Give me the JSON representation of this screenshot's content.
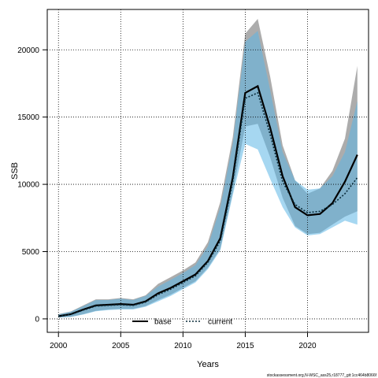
{
  "chart_data": {
    "type": "line",
    "xlabel": "Years",
    "ylabel": "SSB",
    "xlim": [
      1999.1,
      2024.9
    ],
    "ylim": [
      -1000,
      23000
    ],
    "xticks": [
      2000,
      2005,
      2010,
      2015,
      2020
    ],
    "yticks": [
      0,
      5000,
      10000,
      15000,
      20000
    ],
    "grid": true,
    "legend_position": "bottom-center",
    "x": [
      2000,
      2001,
      2002,
      2003,
      2004,
      2005,
      2006,
      2007,
      2008,
      2009,
      2010,
      2011,
      2012,
      2013,
      2014,
      2015,
      2016,
      2017,
      2018,
      2019,
      2020,
      2021,
      2022,
      2023,
      2024
    ],
    "series": [
      {
        "name": "base",
        "color": "#000000",
        "linestyle": "solid",
        "band_color": "#808080",
        "values": [
          200,
          350,
          700,
          1000,
          1050,
          1100,
          1050,
          1300,
          1900,
          2300,
          2800,
          3300,
          4300,
          6000,
          10500,
          16800,
          17300,
          14200,
          10600,
          8300,
          7700,
          7800,
          8600,
          10200,
          12200
        ],
        "lower": [
          100,
          150,
          350,
          600,
          700,
          750,
          750,
          950,
          1400,
          1800,
          2300,
          2800,
          3800,
          5200,
          9400,
          14300,
          14500,
          12000,
          9000,
          6900,
          6300,
          6400,
          7000,
          7600,
          8000
        ],
        "upper": [
          350,
          550,
          1000,
          1450,
          1450,
          1550,
          1450,
          1750,
          2600,
          3100,
          3600,
          4200,
          5700,
          8700,
          13500,
          21200,
          22300,
          18000,
          12900,
          10300,
          9300,
          9700,
          11000,
          13400,
          18800
        ]
      },
      {
        "name": "current",
        "color": "#0a2c3a",
        "linestyle": "dotted",
        "band_color": "#5cb7e6",
        "values": [
          200,
          330,
          650,
          950,
          1000,
          1050,
          1000,
          1250,
          1800,
          2200,
          2700,
          3200,
          4200,
          5800,
          10200,
          16400,
          16800,
          13700,
          10200,
          8500,
          7900,
          8000,
          8500,
          9300,
          10500
        ],
        "lower": [
          100,
          150,
          320,
          570,
          650,
          700,
          700,
          900,
          1300,
          1700,
          2200,
          2700,
          3700,
          5100,
          9200,
          13000,
          12600,
          10400,
          8300,
          6800,
          6200,
          6300,
          6800,
          7300,
          7000
        ],
        "upper": [
          330,
          530,
          950,
          1400,
          1400,
          1500,
          1400,
          1700,
          2400,
          2900,
          3400,
          4000,
          5400,
          8300,
          13000,
          20600,
          21400,
          17000,
          12400,
          10300,
          9600,
          9700,
          10600,
          12400,
          16200
        ]
      }
    ],
    "credit": "stockassessment.org,N-WSC_ass25,r18777_git:1cc464b8066f"
  }
}
